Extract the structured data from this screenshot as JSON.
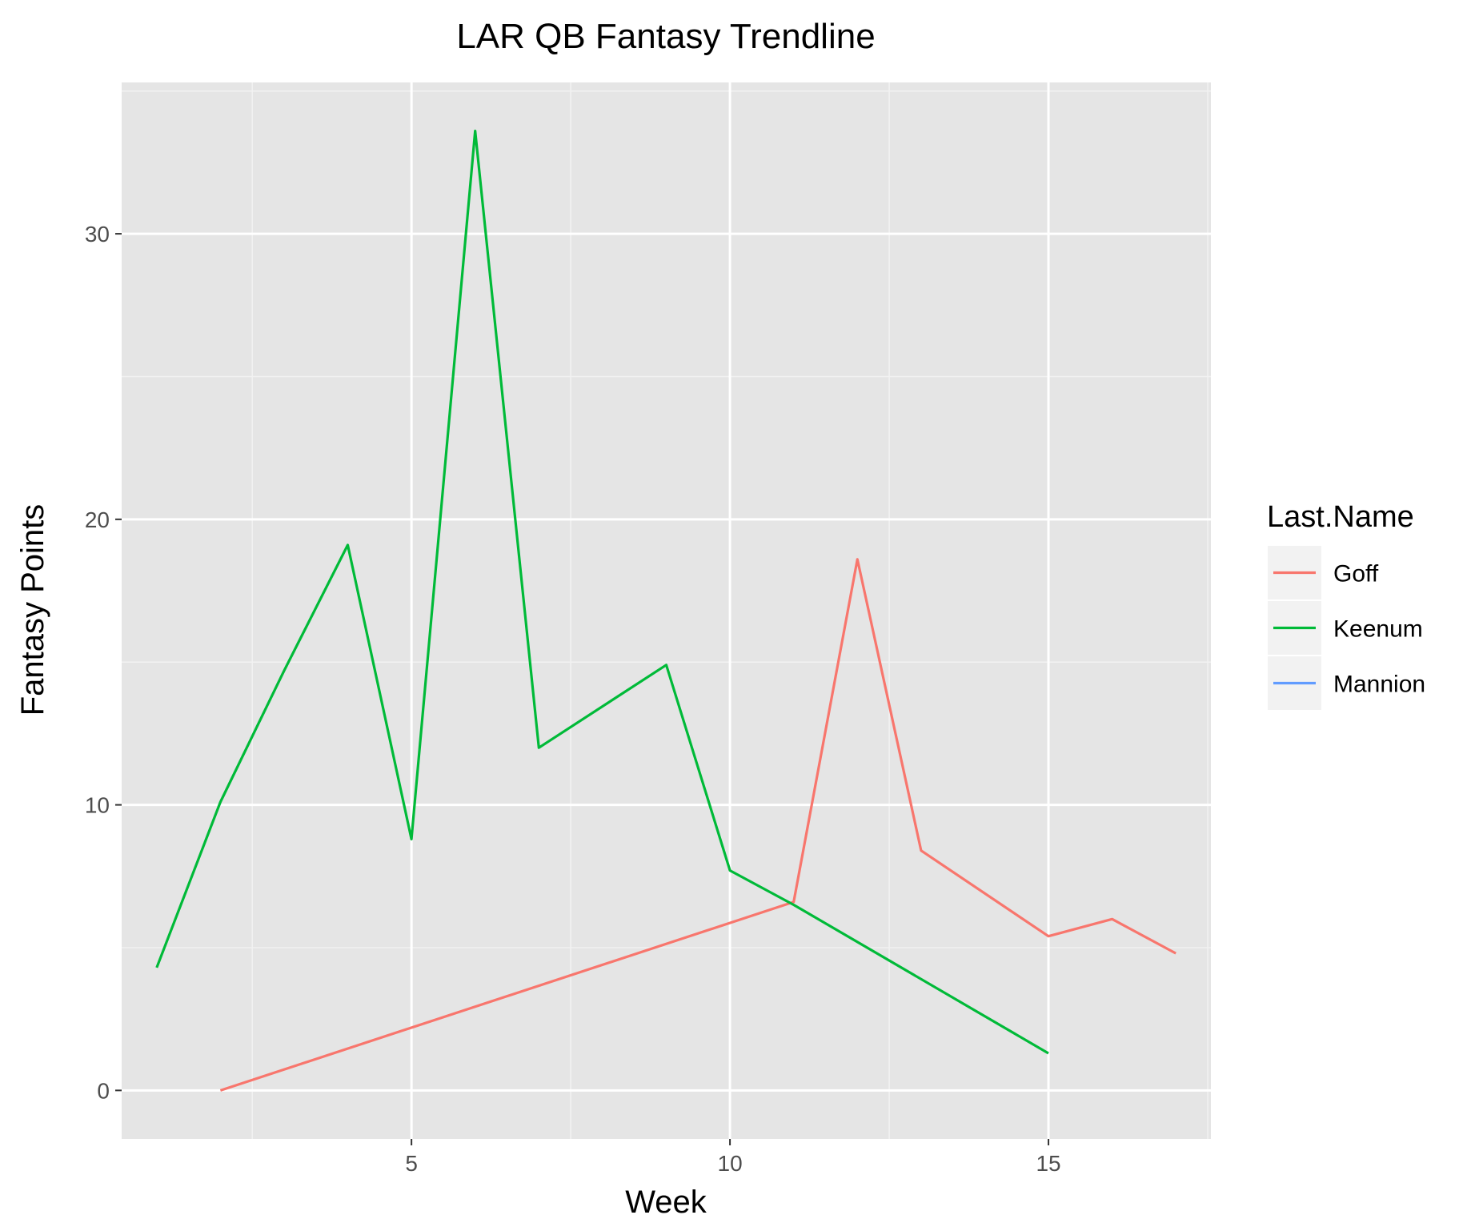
{
  "chart_data": {
    "type": "line",
    "title": "LAR QB Fantasy Trendline",
    "xlabel": "Week",
    "ylabel": "Fantasy Points",
    "xlim": [
      0.45,
      17.55
    ],
    "ylim": [
      -1.7,
      35.3
    ],
    "x_ticks": [
      5,
      10,
      15
    ],
    "y_ticks": [
      0,
      10,
      20,
      30
    ],
    "x_minor": [
      2.5,
      7.5,
      12.5,
      17.5
    ],
    "y_minor": [
      5,
      15,
      25,
      35
    ],
    "grid": true,
    "background": "#e5e5e5",
    "legend": {
      "title": "Last.Name",
      "position": "right"
    },
    "series": [
      {
        "name": "Goff",
        "color": "#f8766d",
        "x": [
          2,
          11,
          12,
          13,
          15,
          16,
          17
        ],
        "y": [
          0.0,
          6.6,
          18.6,
          8.4,
          5.4,
          6.0,
          4.8
        ]
      },
      {
        "name": "Keenum",
        "color": "#00ba38",
        "x": [
          1,
          2,
          3,
          4,
          5,
          6,
          7,
          9,
          10,
          11,
          15
        ],
        "y": [
          4.3,
          10.1,
          14.7,
          19.1,
          8.8,
          33.6,
          12.0,
          14.9,
          7.7,
          6.5,
          1.3
        ]
      },
      {
        "name": "Mannion",
        "color": "#619cff",
        "x": [],
        "y": []
      }
    ]
  }
}
